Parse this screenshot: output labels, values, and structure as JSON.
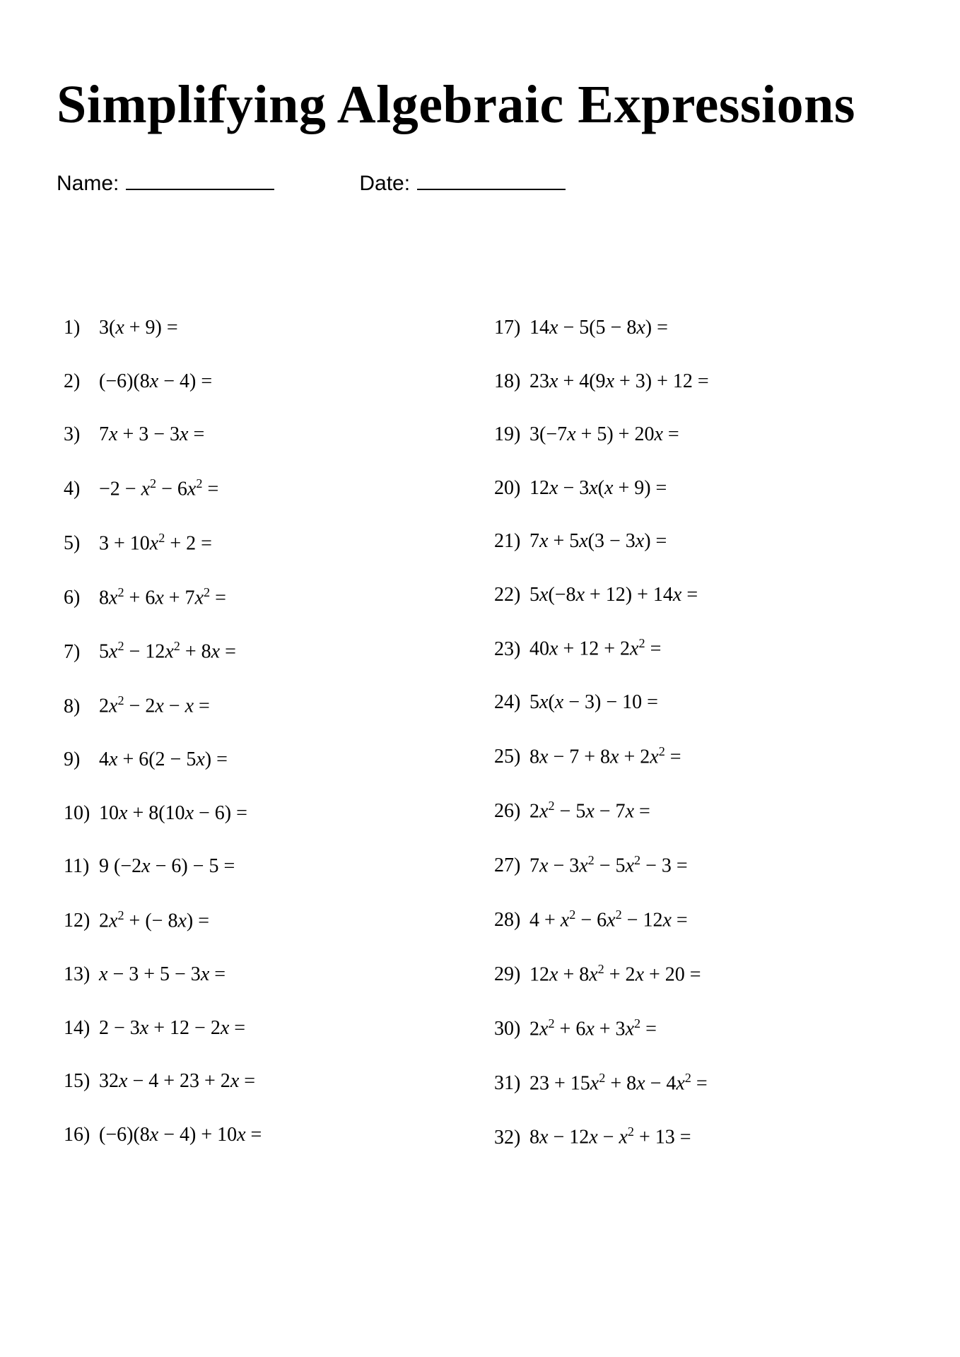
{
  "title": "Simplifying Algebraic Expressions",
  "meta": {
    "name_label": "Name:",
    "date_label": "Date:"
  },
  "problems": [
    {
      "n": "1)",
      "expr": "3(<i>x</i> + 9) ="
    },
    {
      "n": "2)",
      "expr": "(−6)(8<i>x</i> − 4) ="
    },
    {
      "n": "3)",
      "expr": "7<i>x</i> + 3 − 3<i>x</i> ="
    },
    {
      "n": "4)",
      "expr": "−2 − <i>x</i><sup>2</sup> − 6<i>x</i><sup>2</sup> ="
    },
    {
      "n": "5)",
      "expr": "3 + 10<i>x</i><sup>2</sup> + 2 ="
    },
    {
      "n": "6)",
      "expr": "8<i>x</i><sup>2</sup> + 6<i>x</i> + 7<i>x</i><sup>2</sup> ="
    },
    {
      "n": "7)",
      "expr": "5<i>x</i><sup>2</sup> − 12<i>x</i><sup>2</sup> + 8<i>x</i> ="
    },
    {
      "n": "8)",
      "expr": "2<i>x</i><sup>2</sup> − 2<i>x</i> − <i>x</i> ="
    },
    {
      "n": "9)",
      "expr": "4<i>x</i> + 6(2 − 5<i>x</i>) ="
    },
    {
      "n": "10)",
      "expr": "10<i>x</i> + 8(10<i>x</i> − 6) ="
    },
    {
      "n": "11)",
      "expr": "9 (−2<i>x</i> − 6) − 5 ="
    },
    {
      "n": "12)",
      "expr": " 2<i>x</i><sup>2</sup> + (− 8<i>x</i>) ="
    },
    {
      "n": "13)",
      "expr": " <i>x</i> − 3 + 5 − 3<i>x</i> ="
    },
    {
      "n": "14)",
      "expr": " 2 − 3<i>x</i> + 12 − 2<i>x</i> ="
    },
    {
      "n": "15)",
      "expr": " 32<i>x</i> − 4 + 23 + 2<i>x</i> ="
    },
    {
      "n": "16)",
      "expr": "(−6)(8<i>x</i> − 4) + 10<i>x</i> ="
    },
    {
      "n": "17)",
      "expr": "14<i>x</i> − 5(5 −  8<i>x</i>) ="
    },
    {
      "n": "18)",
      "expr": "23<i>x</i> + 4(9<i>x</i> + 3) + 12 ="
    },
    {
      "n": "19)",
      "expr": "3(−7<i>x</i> + 5) + 20<i>x</i> ="
    },
    {
      "n": "20)",
      "expr": "12<i>x</i> − 3<i>x</i>(<i>x</i> + 9) ="
    },
    {
      "n": "21)",
      "expr": "7<i>x</i> + 5<i>x</i>(3 − 3<i>x</i>) ="
    },
    {
      "n": "22)",
      "expr": "5<i>x</i>(−8<i>x</i> + 12) + 14<i>x</i> ="
    },
    {
      "n": "23)",
      "expr": "40<i>x</i> + 12 + 2<i>x</i><sup>2</sup> ="
    },
    {
      "n": "24)",
      "expr": "5<i>x</i>(<i>x</i> − 3) − 10 ="
    },
    {
      "n": "25)",
      "expr": "8<i>x</i> − 7 + 8<i>x</i> + 2<i>x</i><sup>2</sup> ="
    },
    {
      "n": "26)",
      "expr": "2<i>x</i><sup>2</sup> − 5<i>x</i> − 7<i>x</i> ="
    },
    {
      "n": "27)",
      "expr": "7<i>x</i> − 3<i>x</i><sup>2</sup> − 5<i>x</i><sup>2</sup> − 3 ="
    },
    {
      "n": "28)",
      "expr": "4 + <i>x</i><sup>2</sup> − 6<i>x</i><sup>2</sup> − 12<i>x</i> ="
    },
    {
      "n": "29)",
      "expr": "12<i>x</i> + 8<i>x</i><sup>2</sup> + 2<i>x</i> + 20 ="
    },
    {
      "n": "30)",
      "expr": "2<i>x</i><sup>2</sup> + 6<i>x</i> + 3<i>x</i><sup>2</sup> ="
    },
    {
      "n": "31)",
      "expr": "23 + 15<i>x</i><sup>2</sup> + 8<i>x</i> − 4<i>x</i><sup>2</sup> ="
    },
    {
      "n": "32)",
      "expr": "8<i>x</i> − 12<i>x</i> − <i>x</i><sup>2</sup> + 13 ="
    }
  ],
  "layout": {
    "columns": 2,
    "col1_range": [
      0,
      16
    ],
    "col2_range": [
      16,
      32
    ]
  },
  "style": {
    "page_bg": "#ffffff",
    "text_color": "#000000",
    "title_fontsize": 76,
    "meta_fontsize": 30,
    "problem_fontsize": 28,
    "row_gap": 42
  }
}
